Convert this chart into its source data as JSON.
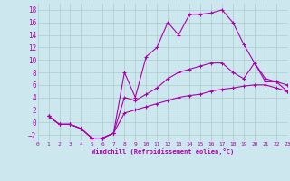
{
  "xlabel": "Windchill (Refroidissement éolien,°C)",
  "background_color": "#cce8ee",
  "grid_color": "#aacccc",
  "line_color": "#aa00aa",
  "xlim": [
    0,
    23
  ],
  "ylim": [
    -3,
    19
  ],
  "xticks": [
    0,
    1,
    2,
    3,
    4,
    5,
    6,
    7,
    8,
    9,
    10,
    11,
    12,
    13,
    14,
    15,
    16,
    17,
    18,
    19,
    20,
    21,
    22,
    23
  ],
  "yticks": [
    -2,
    0,
    2,
    4,
    6,
    8,
    10,
    12,
    14,
    16,
    18
  ],
  "line1_x": [
    1,
    2,
    3,
    4,
    5,
    6,
    7,
    8,
    9,
    10,
    11,
    12,
    13,
    14,
    15,
    16,
    17,
    18,
    19,
    20,
    21,
    22,
    23
  ],
  "line1_y": [
    1,
    -0.3,
    -0.3,
    -1.0,
    -2.5,
    -2.5,
    -1.7,
    8.0,
    4.0,
    10.5,
    12.0,
    16.0,
    14.0,
    17.3,
    17.3,
    17.5,
    18.0,
    16.0,
    12.5,
    9.5,
    7.0,
    6.5,
    5.0
  ],
  "line2_x": [
    1,
    2,
    3,
    4,
    5,
    6,
    7,
    8,
    9,
    10,
    11,
    12,
    13,
    14,
    15,
    16,
    17,
    18,
    19,
    20,
    21,
    22,
    23
  ],
  "line2_y": [
    1,
    -0.3,
    -0.3,
    -1.0,
    -2.5,
    -2.5,
    -1.7,
    4.0,
    3.5,
    4.5,
    5.5,
    7.0,
    8.0,
    8.5,
    9.0,
    9.5,
    9.5,
    8.0,
    7.0,
    9.5,
    6.5,
    6.5,
    6.0
  ],
  "line3_x": [
    1,
    2,
    3,
    4,
    5,
    6,
    7,
    8,
    9,
    10,
    11,
    12,
    13,
    14,
    15,
    16,
    17,
    18,
    19,
    20,
    21,
    22,
    23
  ],
  "line3_y": [
    1,
    -0.3,
    -0.3,
    -1.0,
    -2.5,
    -2.5,
    -1.7,
    1.5,
    2.0,
    2.5,
    3.0,
    3.5,
    4.0,
    4.3,
    4.5,
    5.0,
    5.3,
    5.5,
    5.8,
    6.0,
    6.0,
    5.5,
    5.0
  ]
}
